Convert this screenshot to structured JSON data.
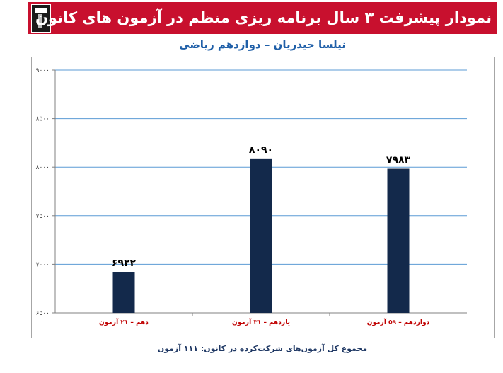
{
  "banner": {
    "title": "نمودار پیشرفت ۳ سال برنامه ریزی منظم در آزمون های کانون"
  },
  "subtitle": "نیلسا حیدریان – دوازدهم ریاضی",
  "footer": "مجموع کل آزمون‌های شرکت‌کرده در کانون: ۱۱۱ آزمون",
  "colors": {
    "bar": "#13294b",
    "banner": "#c8102e",
    "category_text": "#c00000",
    "gridline": "#5b9bd5"
  },
  "chart_data": {
    "type": "bar",
    "title": "",
    "xlabel": "",
    "ylabel": "",
    "categories": [
      "دهم – ۲۱ آزمون",
      "یازدهم – ۳۱ آزمون",
      "دوازدهم – ۵۹ آزمون"
    ],
    "values": [
      6922,
      8090,
      7983
    ],
    "value_labels": [
      "۶۹۲۲",
      "۸۰۹۰",
      "۷۹۸۳"
    ],
    "ylim": [
      6500,
      9000
    ],
    "yticks": [
      6500,
      7000,
      7500,
      8000,
      8500,
      9000
    ],
    "ytick_labels": [
      "۶۵۰۰",
      "۷۰۰۰",
      "۷۵۰۰",
      "۸۰۰۰",
      "۸۵۰۰",
      "۹۰۰۰"
    ],
    "grid": true,
    "legend": "none"
  }
}
